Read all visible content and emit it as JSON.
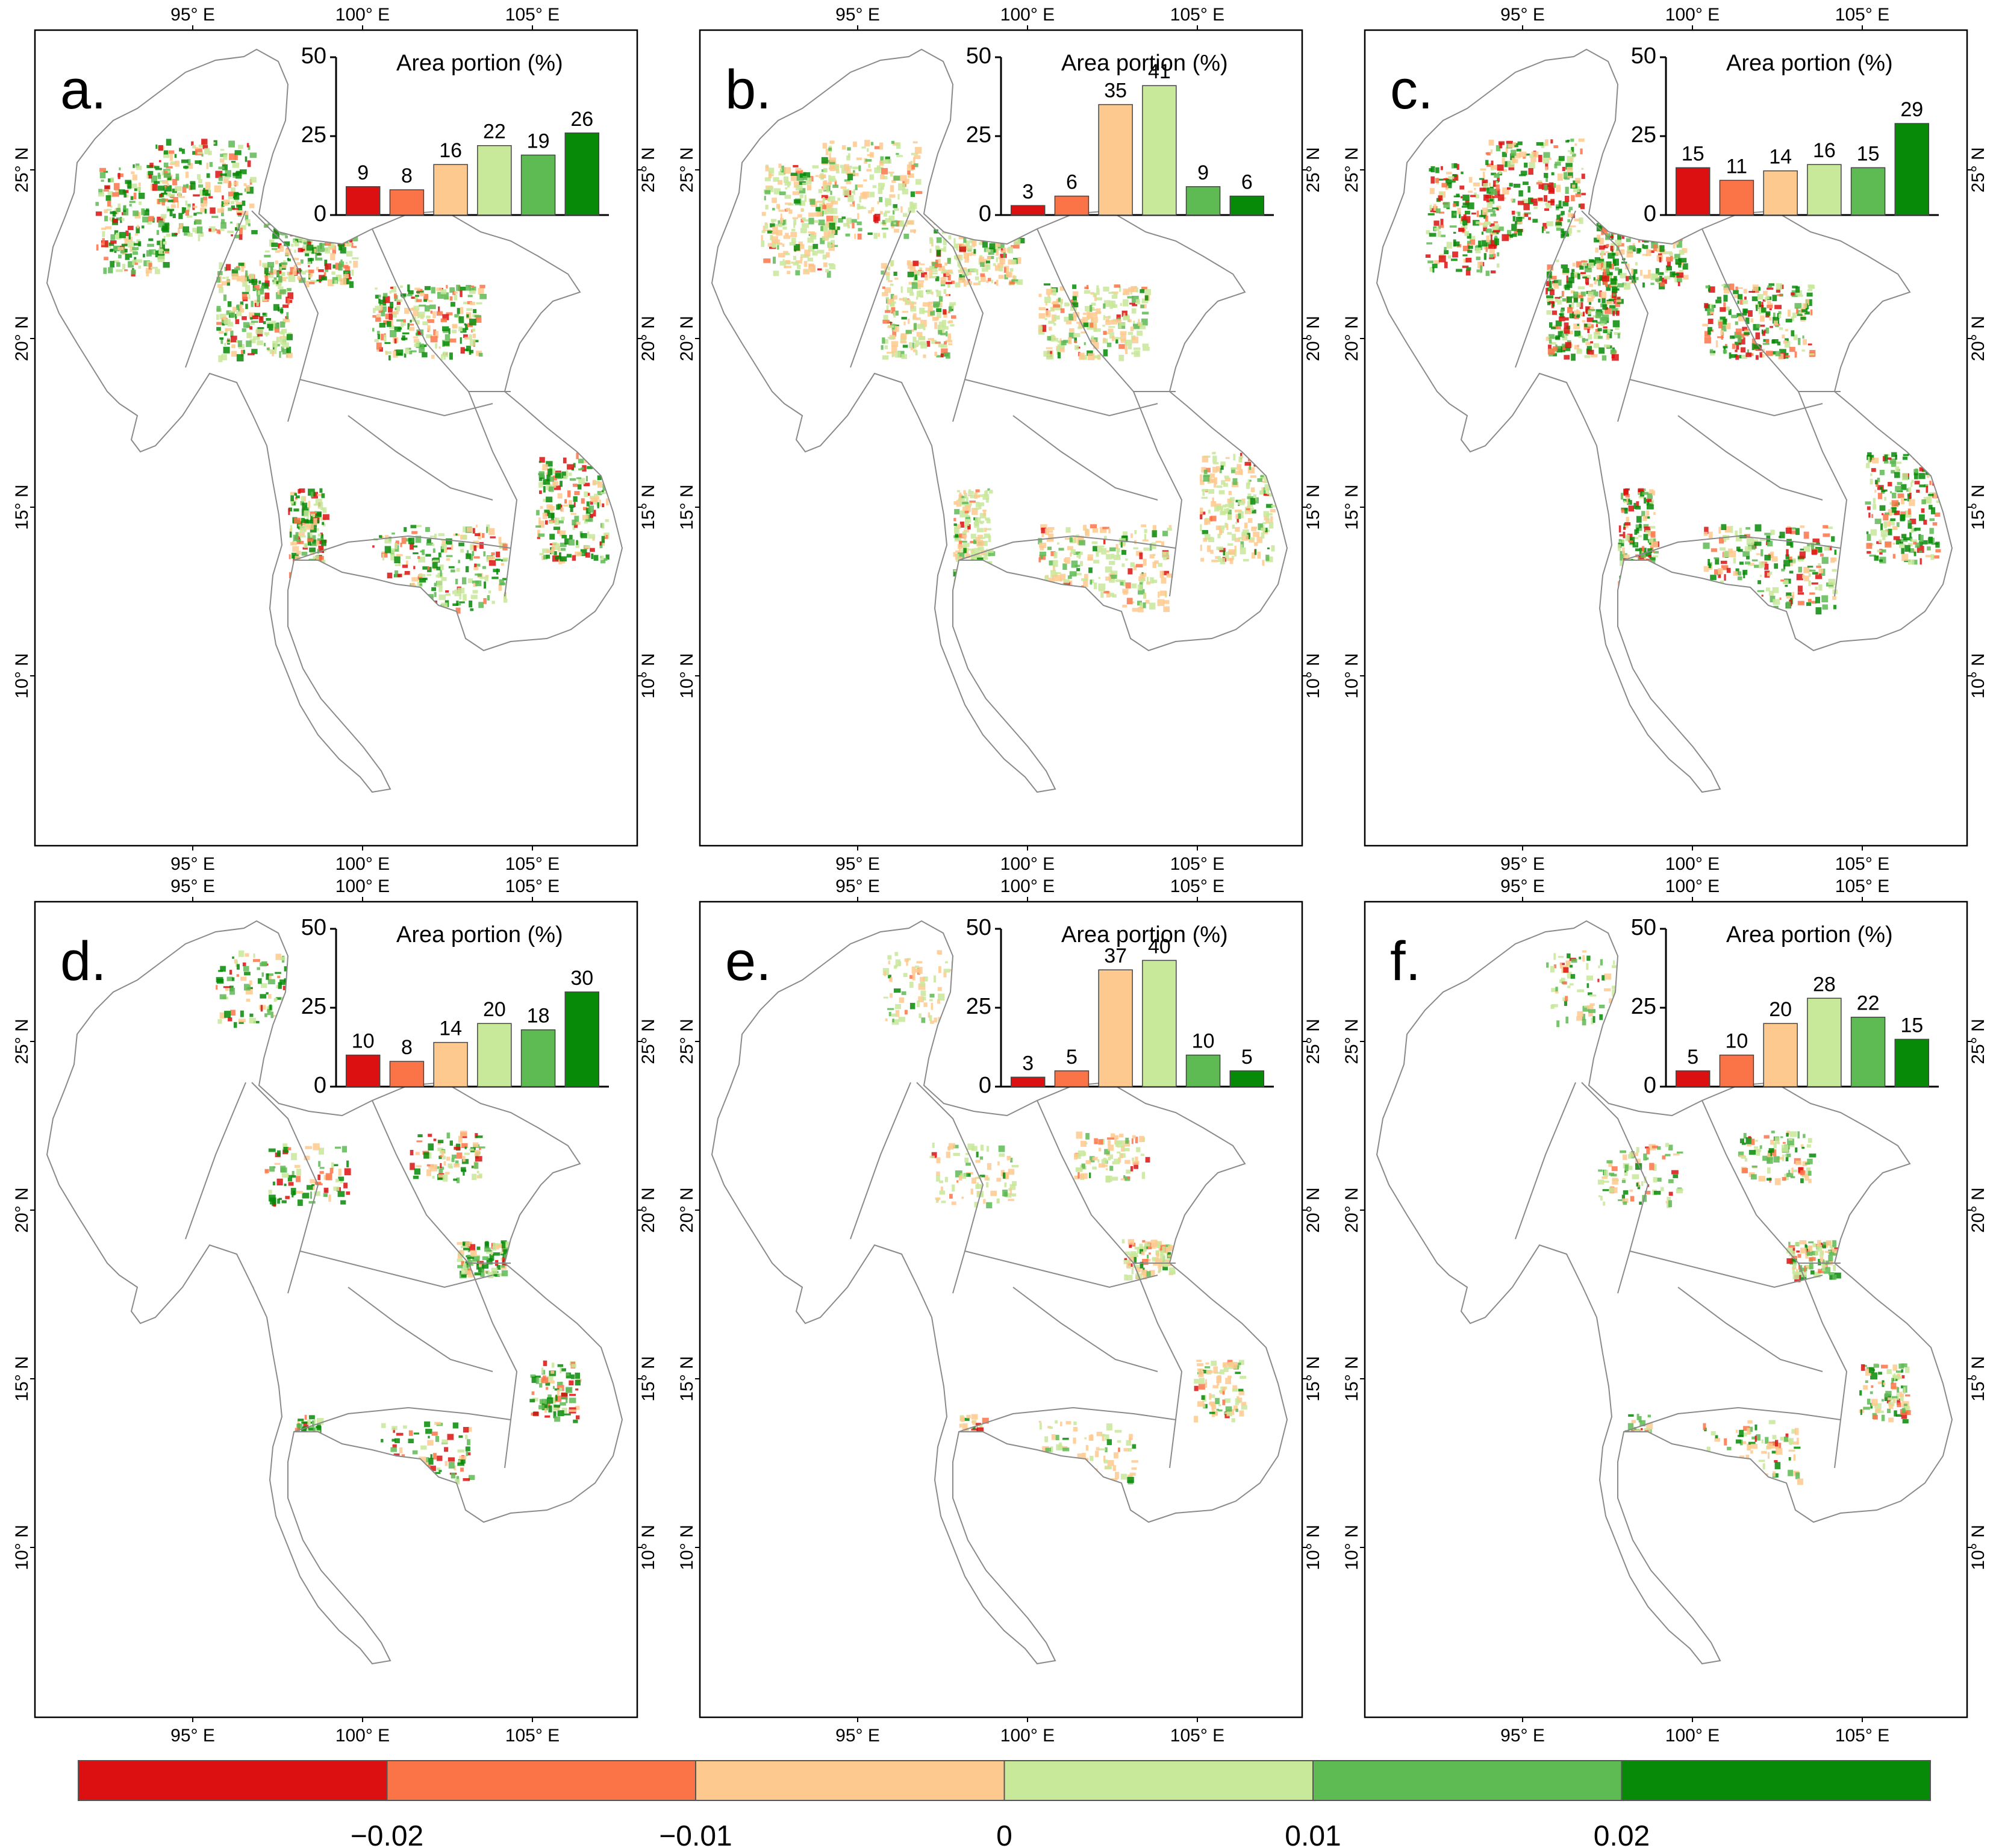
{
  "colors": [
    "#dc1010",
    "#fb7448",
    "#fec98e",
    "#c8e89a",
    "#5eba53",
    "#068a07"
  ],
  "inset_title": "Area portion (%)",
  "axes": {
    "lon_labels": [
      "95° E",
      "100° E",
      "105° E"
    ],
    "lat_labels": [
      "25° N",
      "20° N",
      "15° N",
      "10° N"
    ]
  },
  "colorbar": {
    "tick_labels": [
      "−0.02",
      "−0.01",
      "0",
      "0.01",
      "0.02"
    ]
  },
  "chart_data": [
    {
      "panel": "a.",
      "type": "bar",
      "title": "Area portion (%)",
      "ylim": [
        0,
        50
      ],
      "yticks": [
        "0",
        "25",
        "50"
      ],
      "values": [
        9,
        8,
        16,
        22,
        19,
        26
      ]
    },
    {
      "panel": "b.",
      "type": "bar",
      "title": "Area portion (%)",
      "ylim": [
        0,
        50
      ],
      "yticks": [
        "0",
        "25",
        "50"
      ],
      "values": [
        3,
        6,
        35,
        41,
        9,
        6
      ]
    },
    {
      "panel": "c.",
      "type": "bar",
      "title": "Area portion (%)",
      "ylim": [
        0,
        50
      ],
      "yticks": [
        "0",
        "25",
        "50"
      ],
      "values": [
        15,
        11,
        14,
        16,
        15,
        29
      ]
    },
    {
      "panel": "d.",
      "type": "bar",
      "title": "Area portion (%)",
      "ylim": [
        0,
        50
      ],
      "yticks": [
        "0",
        "25",
        "50"
      ],
      "values": [
        10,
        8,
        14,
        20,
        18,
        30
      ]
    },
    {
      "panel": "e.",
      "type": "bar",
      "title": "Area portion (%)",
      "ylim": [
        0,
        50
      ],
      "yticks": [
        "0",
        "25",
        "50"
      ],
      "values": [
        3,
        5,
        37,
        40,
        10,
        5
      ]
    },
    {
      "panel": "f.",
      "type": "bar",
      "title": "Area portion (%)",
      "ylim": [
        0,
        50
      ],
      "yticks": [
        "0",
        "25",
        "50"
      ],
      "values": [
        5,
        10,
        20,
        28,
        22,
        15
      ]
    }
  ]
}
